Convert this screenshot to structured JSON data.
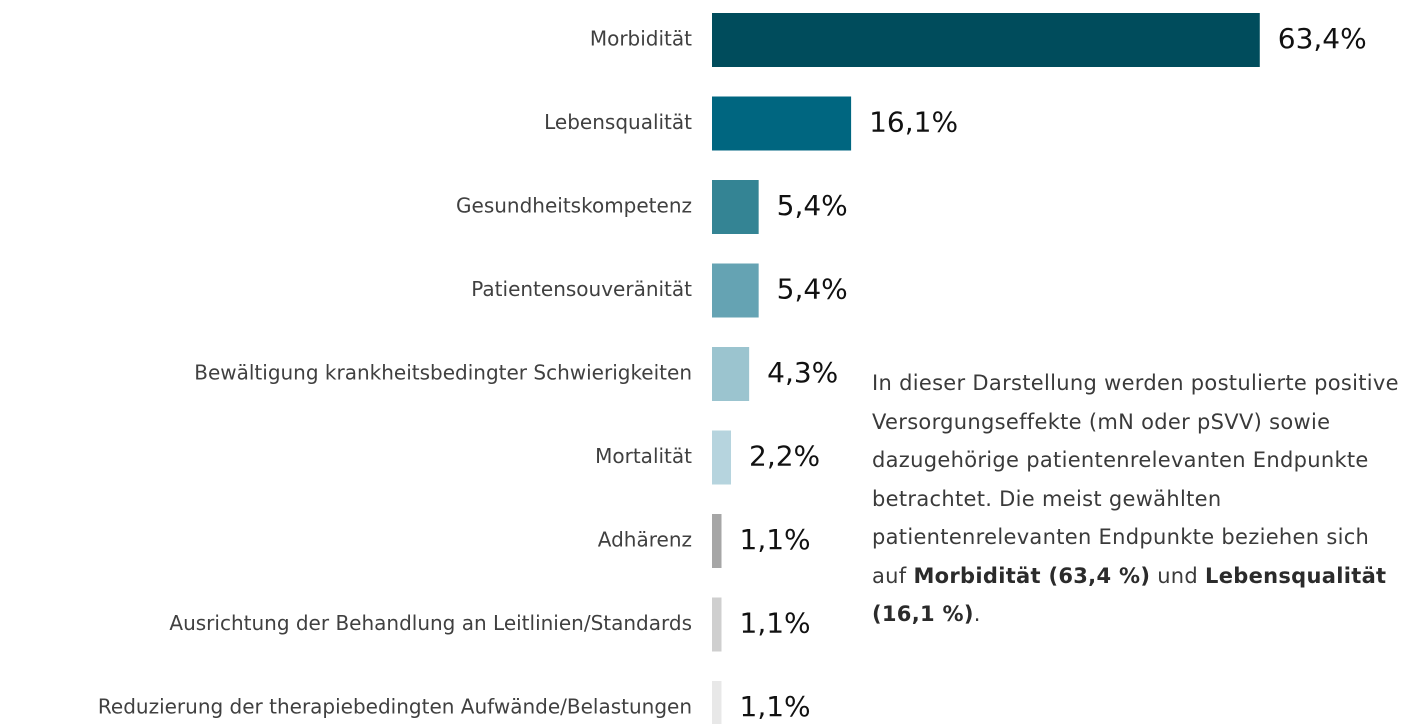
{
  "chart_data": {
    "type": "bar",
    "orientation": "horizontal",
    "categories": [
      "Morbidität",
      "Lebensqualität",
      "Gesundheitskompetenz",
      "Patientensouveränität",
      "Bewältigung krankheitsbedingter Schwierigkeiten",
      "Mortalität",
      "Adhärenz",
      "Ausrichtung der Behandlung an Leitlinien/Standards",
      "Reduzierung der therapiebedingten Aufwände/Belastungen"
    ],
    "values": [
      63.4,
      16.1,
      5.4,
      5.4,
      4.3,
      2.2,
      1.1,
      1.1,
      1.1
    ],
    "value_labels": [
      "63,4%",
      "16,1%",
      "5,4%",
      "5,4%",
      "4,3%",
      "2,2%",
      "1,1%",
      "1,1%",
      "1,1%"
    ],
    "colors": [
      "#004c5c",
      "#006680",
      "#348494",
      "#65a3b3",
      "#9bc4cf",
      "#b6d4de",
      "#a6a6a6",
      "#cfcfcf",
      "#e8e8e8"
    ]
  },
  "note": [
    {
      "text": "In dieser Darstellung werden postulierte positive Versorgungseffekte (mN oder pSVV) sowie dazugehörige patientenrelevanten Endpunkte betrachtet. Die meist gewählten patientenrelevanten Endpunkte beziehen sich auf ",
      "bold": false
    },
    {
      "text": "Morbidität (63,4 %)",
      "bold": true
    },
    {
      "text": " und ",
      "bold": false
    },
    {
      "text": "Lebensqualität (16,1 %)",
      "bold": true
    },
    {
      "text": ".",
      "bold": false
    }
  ]
}
